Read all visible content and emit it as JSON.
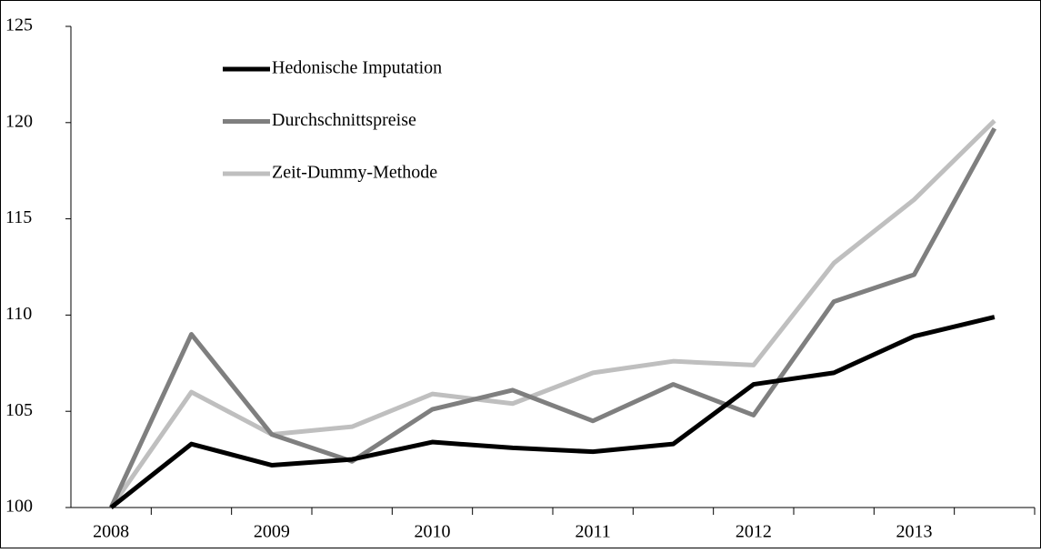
{
  "chart_data": {
    "type": "line",
    "categories": [
      "2008",
      null,
      "2009",
      null,
      "2010",
      null,
      "2011",
      null,
      "2012",
      null,
      "2013",
      null
    ],
    "series": [
      {
        "name": "Hedonische Imputation",
        "color": "#000000",
        "values": [
          100,
          103.3,
          102.2,
          102.5,
          103.4,
          103.1,
          102.9,
          103.3,
          106.4,
          107.0,
          108.9,
          109.9
        ]
      },
      {
        "name": "Durchschnittspreise",
        "color": "#7f7f7f",
        "values": [
          100,
          109.0,
          103.8,
          102.4,
          105.1,
          106.1,
          104.5,
          106.4,
          104.8,
          110.7,
          112.1,
          119.7
        ]
      },
      {
        "name": "Zeit-Dummy-Methode",
        "color": "#bfbfbf",
        "values": [
          100,
          106.0,
          103.8,
          104.2,
          105.9,
          105.4,
          107.0,
          107.6,
          107.4,
          112.7,
          116.0,
          120.1
        ]
      }
    ],
    "ylim": [
      100,
      125
    ],
    "yticks": [
      100,
      105,
      110,
      115,
      120,
      125
    ],
    "grid": false,
    "legend": "top-left"
  }
}
